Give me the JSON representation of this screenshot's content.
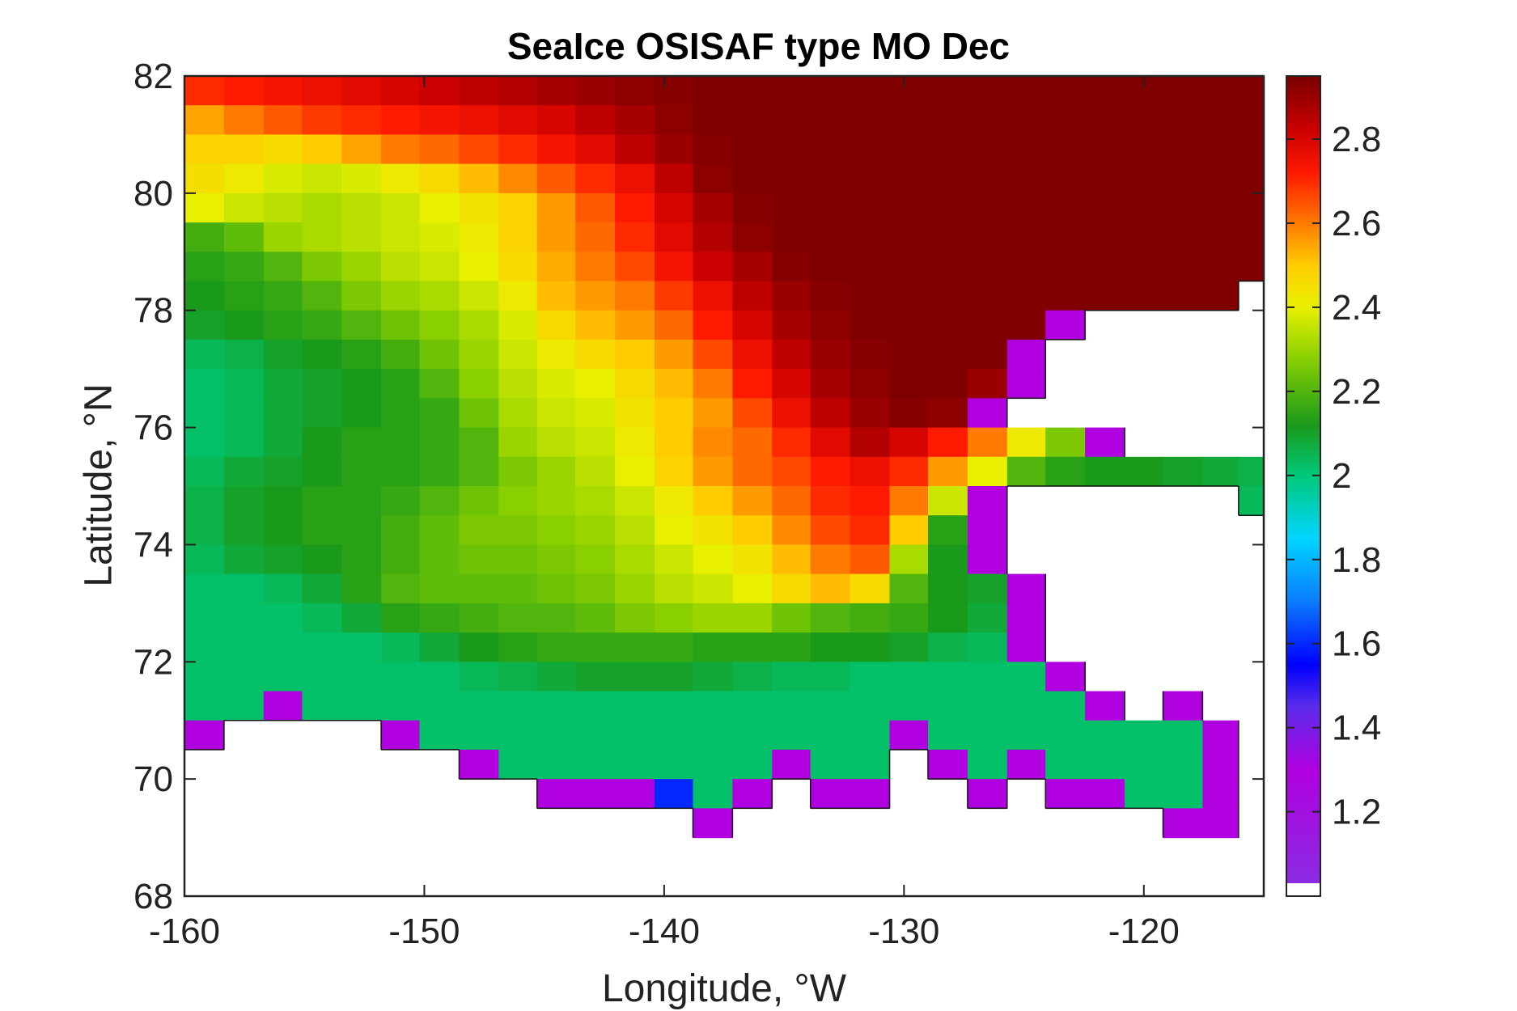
{
  "chart_data": {
    "type": "heatmap",
    "title": "SeaIce OSISAF type MO Dec",
    "xlabel": "Longitude, °W",
    "ylabel": "Latitude, °N",
    "xlim": [
      -160,
      -115
    ],
    "ylim": [
      68,
      82
    ],
    "xticks": [
      -160,
      -150,
      -140,
      -130,
      -120
    ],
    "yticks": [
      68,
      70,
      72,
      74,
      76,
      78,
      80,
      82
    ],
    "colorbar": {
      "range": [
        1.03,
        2.95
      ],
      "ticks": [
        1.2,
        1.4,
        1.6,
        1.8,
        2,
        2.2,
        2.4,
        2.6,
        2.8
      ],
      "colormap": [
        {
          "value": 1.03,
          "color": "#8a2be2"
        },
        {
          "value": 1.3,
          "color": "#b000e0"
        },
        {
          "value": 1.45,
          "color": "#5a2bea"
        },
        {
          "value": 1.55,
          "color": "#0000ff"
        },
        {
          "value": 1.7,
          "color": "#0a7cff"
        },
        {
          "value": 1.85,
          "color": "#00d4ff"
        },
        {
          "value": 2.0,
          "color": "#00c878"
        },
        {
          "value": 2.12,
          "color": "#1a9a1a"
        },
        {
          "value": 2.28,
          "color": "#8ad000"
        },
        {
          "value": 2.4,
          "color": "#e8f000"
        },
        {
          "value": 2.5,
          "color": "#ffcc00"
        },
        {
          "value": 2.6,
          "color": "#ff7a00"
        },
        {
          "value": 2.72,
          "color": "#ff1a00"
        },
        {
          "value": 2.82,
          "color": "#cc0000"
        },
        {
          "value": 2.95,
          "color": "#7a0000"
        }
      ],
      "land_color": "#ffffff"
    },
    "grid": false,
    "field_regions": [
      {
        "label": "far north",
        "approx_value": 2.93
      },
      {
        "label": "north-central",
        "approx_value": 2.7
      },
      {
        "label": "central",
        "approx_value": 2.4
      },
      {
        "label": "west-central",
        "approx_value": 2.2
      },
      {
        "label": "southern coastal band",
        "approx_value": 2.02
      },
      {
        "label": "coastal fringe",
        "approx_value": 1.3
      }
    ],
    "rows": [
      {
        "lat": 81.75,
        "values": [
          2.7,
          2.72,
          2.74,
          2.76,
          2.78,
          2.8,
          2.82,
          2.84,
          2.86,
          2.88,
          2.9,
          2.92,
          2.93,
          2.94,
          2.94,
          2.94,
          2.94,
          2.94,
          2.94,
          2.94,
          2.94,
          2.94,
          2.94,
          2.94,
          2.94,
          2.94,
          2.94,
          2.94
        ]
      },
      {
        "lat": 81.25,
        "values": [
          2.55,
          2.6,
          2.64,
          2.68,
          2.7,
          2.72,
          2.74,
          2.76,
          2.78,
          2.8,
          2.84,
          2.88,
          2.92,
          2.94,
          2.94,
          2.94,
          2.94,
          2.94,
          2.94,
          2.94,
          2.94,
          2.94,
          2.94,
          2.94,
          2.94,
          2.94,
          2.94,
          2.94
        ]
      },
      {
        "lat": 80.75,
        "values": [
          2.48,
          2.48,
          2.46,
          2.5,
          2.55,
          2.6,
          2.62,
          2.66,
          2.7,
          2.74,
          2.78,
          2.84,
          2.9,
          2.93,
          2.94,
          2.94,
          2.94,
          2.94,
          2.94,
          2.94,
          2.94,
          2.94,
          2.94,
          2.94,
          2.94,
          2.94,
          2.94,
          2.94
        ]
      },
      {
        "lat": 80.25,
        "values": [
          2.45,
          2.42,
          2.38,
          2.36,
          2.38,
          2.42,
          2.46,
          2.52,
          2.58,
          2.64,
          2.7,
          2.76,
          2.84,
          2.92,
          2.94,
          2.94,
          2.94,
          2.94,
          2.94,
          2.94,
          2.94,
          2.94,
          2.94,
          2.94,
          2.94,
          2.94,
          2.94,
          2.94
        ]
      },
      {
        "lat": 79.75,
        "values": [
          2.4,
          2.36,
          2.34,
          2.32,
          2.34,
          2.36,
          2.4,
          2.44,
          2.48,
          2.56,
          2.64,
          2.72,
          2.8,
          2.88,
          2.93,
          2.94,
          2.94,
          2.94,
          2.94,
          2.94,
          2.94,
          2.94,
          2.94,
          2.94,
          2.94,
          2.94,
          2.94,
          2.94
        ]
      },
      {
        "lat": 79.25,
        "values": [
          2.18,
          2.22,
          2.3,
          2.32,
          2.34,
          2.36,
          2.38,
          2.42,
          2.48,
          2.56,
          2.62,
          2.7,
          2.78,
          2.86,
          2.92,
          2.94,
          2.94,
          2.94,
          2.94,
          2.94,
          2.94,
          2.94,
          2.94,
          2.94,
          2.94,
          2.94,
          2.94,
          2.94
        ]
      },
      {
        "lat": 78.75,
        "values": [
          2.14,
          2.16,
          2.2,
          2.26,
          2.3,
          2.34,
          2.36,
          2.4,
          2.46,
          2.54,
          2.6,
          2.66,
          2.74,
          2.82,
          2.88,
          2.93,
          2.94,
          2.94,
          2.94,
          2.94,
          2.94,
          2.94,
          2.94,
          2.94,
          2.94,
          2.94,
          2.94,
          2.94
        ]
      },
      {
        "lat": 78.25,
        "values": [
          2.12,
          2.14,
          2.16,
          2.2,
          2.26,
          2.3,
          2.32,
          2.36,
          2.42,
          2.52,
          2.56,
          2.6,
          2.68,
          2.76,
          2.84,
          2.9,
          2.93,
          2.94,
          2.94,
          2.94,
          2.94,
          2.94,
          2.94,
          2.94,
          2.94,
          2.94,
          2.94,
          null
        ]
      },
      {
        "lat": 77.75,
        "values": [
          2.1,
          2.12,
          2.14,
          2.16,
          2.2,
          2.24,
          2.28,
          2.32,
          2.38,
          2.46,
          2.52,
          2.56,
          2.62,
          2.72,
          2.8,
          2.88,
          2.92,
          2.94,
          2.94,
          2.94,
          2.94,
          2.94,
          1.3,
          null,
          null,
          null,
          null,
          null
        ]
      },
      {
        "lat": 77.25,
        "values": [
          2.04,
          2.06,
          2.1,
          2.12,
          2.14,
          2.18,
          2.24,
          2.3,
          2.36,
          2.42,
          2.46,
          2.5,
          2.56,
          2.66,
          2.76,
          2.84,
          2.9,
          2.93,
          2.94,
          2.94,
          2.94,
          1.3,
          null,
          null,
          null,
          null,
          null,
          null
        ]
      },
      {
        "lat": 76.75,
        "values": [
          2.02,
          2.04,
          2.08,
          2.1,
          2.12,
          2.14,
          2.2,
          2.28,
          2.34,
          2.38,
          2.4,
          2.46,
          2.52,
          2.6,
          2.72,
          2.8,
          2.88,
          2.92,
          2.94,
          2.94,
          2.9,
          1.3,
          null,
          null,
          null,
          null,
          null,
          null
        ]
      },
      {
        "lat": 76.25,
        "values": [
          2.02,
          2.04,
          2.08,
          2.1,
          2.12,
          2.14,
          2.16,
          2.24,
          2.32,
          2.36,
          2.38,
          2.44,
          2.5,
          2.56,
          2.66,
          2.76,
          2.84,
          2.9,
          2.93,
          2.92,
          1.3,
          null,
          null,
          null,
          null,
          null,
          null,
          null
        ]
      },
      {
        "lat": 75.75,
        "values": [
          2.02,
          2.04,
          2.08,
          2.12,
          2.14,
          2.14,
          2.16,
          2.2,
          2.3,
          2.34,
          2.36,
          2.42,
          2.5,
          2.58,
          2.62,
          2.7,
          2.78,
          2.86,
          2.8,
          2.72,
          2.6,
          2.42,
          2.26,
          1.3,
          null,
          null,
          null,
          null
        ]
      },
      {
        "lat": 75.25,
        "values": [
          2.04,
          2.08,
          2.1,
          2.12,
          2.14,
          2.14,
          2.16,
          2.2,
          2.26,
          2.3,
          2.34,
          2.4,
          2.48,
          2.56,
          2.62,
          2.66,
          2.72,
          2.76,
          2.7,
          2.56,
          2.4,
          2.2,
          2.14,
          2.12,
          2.12,
          2.1,
          2.08,
          2.06
        ]
      },
      {
        "lat": 74.75,
        "values": [
          2.06,
          2.1,
          2.12,
          2.14,
          2.14,
          2.16,
          2.2,
          2.24,
          2.28,
          2.3,
          2.32,
          2.36,
          2.42,
          2.5,
          2.56,
          2.62,
          2.7,
          2.72,
          2.6,
          2.36,
          1.3,
          null,
          null,
          null,
          null,
          null,
          null,
          2.04
        ]
      },
      {
        "lat": 74.25,
        "values": [
          2.06,
          2.1,
          2.12,
          2.14,
          2.14,
          2.18,
          2.22,
          2.26,
          2.26,
          2.28,
          2.3,
          2.34,
          2.4,
          2.44,
          2.5,
          2.58,
          2.66,
          2.7,
          2.5,
          2.14,
          1.3,
          null,
          null,
          null,
          null,
          null,
          null,
          null
        ]
      },
      {
        "lat": 73.75,
        "values": [
          2.04,
          2.08,
          2.1,
          2.12,
          2.14,
          2.18,
          2.22,
          2.24,
          2.24,
          2.26,
          2.28,
          2.32,
          2.36,
          2.4,
          2.44,
          2.52,
          2.6,
          2.64,
          2.32,
          2.12,
          1.3,
          null,
          null,
          null,
          null,
          null,
          null,
          null
        ]
      },
      {
        "lat": 73.25,
        "values": [
          2.02,
          2.02,
          2.04,
          2.08,
          2.14,
          2.2,
          2.22,
          2.22,
          2.22,
          2.24,
          2.26,
          2.3,
          2.34,
          2.36,
          2.4,
          2.46,
          2.52,
          2.46,
          2.2,
          2.12,
          2.1,
          1.3,
          null,
          null,
          null,
          null,
          null,
          null
        ]
      },
      {
        "lat": 72.75,
        "values": [
          2.02,
          2.02,
          2.02,
          2.04,
          2.08,
          2.14,
          2.16,
          2.18,
          2.2,
          2.2,
          2.22,
          2.26,
          2.28,
          2.3,
          2.3,
          2.24,
          2.2,
          2.18,
          2.16,
          2.12,
          2.08,
          1.3,
          null,
          null,
          null,
          null,
          null,
          null
        ]
      },
      {
        "lat": 72.25,
        "values": [
          2.02,
          2.02,
          2.02,
          2.02,
          2.02,
          2.04,
          2.08,
          2.12,
          2.14,
          2.16,
          2.16,
          2.16,
          2.16,
          2.14,
          2.14,
          2.14,
          2.12,
          2.12,
          2.1,
          2.06,
          2.04,
          1.3,
          null,
          null,
          null,
          null,
          null,
          null
        ]
      },
      {
        "lat": 71.75,
        "values": [
          2.02,
          2.02,
          2.02,
          2.02,
          2.02,
          2.02,
          2.02,
          2.04,
          2.06,
          2.08,
          2.1,
          2.1,
          2.1,
          2.08,
          2.06,
          2.04,
          2.04,
          2.02,
          2.02,
          2.02,
          2.02,
          2.02,
          1.3,
          null,
          null,
          null,
          null,
          null
        ]
      },
      {
        "lat": 71.25,
        "values": [
          2.02,
          2.02,
          1.3,
          2.02,
          2.02,
          2.02,
          2.02,
          2.02,
          2.02,
          2.02,
          2.02,
          2.02,
          2.02,
          2.02,
          2.02,
          2.02,
          2.02,
          2.02,
          2.02,
          2.02,
          2.02,
          2.02,
          2.02,
          1.3,
          null,
          1.3,
          null,
          null
        ]
      },
      {
        "lat": 70.75,
        "values": [
          1.3,
          null,
          null,
          null,
          null,
          1.3,
          2.02,
          2.02,
          2.02,
          2.02,
          2.02,
          2.02,
          2.02,
          2.02,
          2.02,
          2.02,
          2.02,
          2.02,
          1.3,
          2.02,
          2.02,
          2.02,
          2.02,
          2.02,
          2.02,
          2.02,
          1.3,
          null
        ]
      },
      {
        "lat": 70.25,
        "values": [
          null,
          null,
          null,
          null,
          null,
          null,
          null,
          1.3,
          2.02,
          2.02,
          2.02,
          2.02,
          2.02,
          2.02,
          2.02,
          1.3,
          2.02,
          2.02,
          null,
          1.3,
          2.02,
          1.3,
          2.02,
          2.02,
          2.02,
          2.02,
          1.3,
          null
        ]
      },
      {
        "lat": 69.75,
        "values": [
          null,
          null,
          null,
          null,
          null,
          null,
          null,
          null,
          null,
          1.3,
          1.3,
          1.3,
          1.6,
          2.02,
          1.3,
          null,
          1.3,
          1.3,
          null,
          null,
          1.3,
          null,
          1.3,
          1.3,
          2.02,
          2.02,
          1.3,
          null
        ]
      },
      {
        "lat": 69.25,
        "values": [
          null,
          null,
          null,
          null,
          null,
          null,
          null,
          null,
          null,
          null,
          null,
          null,
          null,
          1.3,
          null,
          null,
          null,
          null,
          null,
          null,
          null,
          null,
          null,
          null,
          null,
          1.3,
          1.3,
          null
        ]
      }
    ],
    "row_longitudes": [
      -159.2,
      -157.5,
      -155.9,
      -154.3,
      -152.6,
      -151.0,
      -149.4,
      -147.7,
      -146.1,
      -144.5,
      -142.9,
      -141.2,
      -139.6,
      -138.0,
      -136.3,
      -134.7,
      -133.1,
      -131.4,
      -129.8,
      -128.2,
      -126.5,
      -124.9,
      -123.3,
      -121.6,
      -120.0,
      -118.4,
      -116.7,
      -115.4
    ]
  }
}
